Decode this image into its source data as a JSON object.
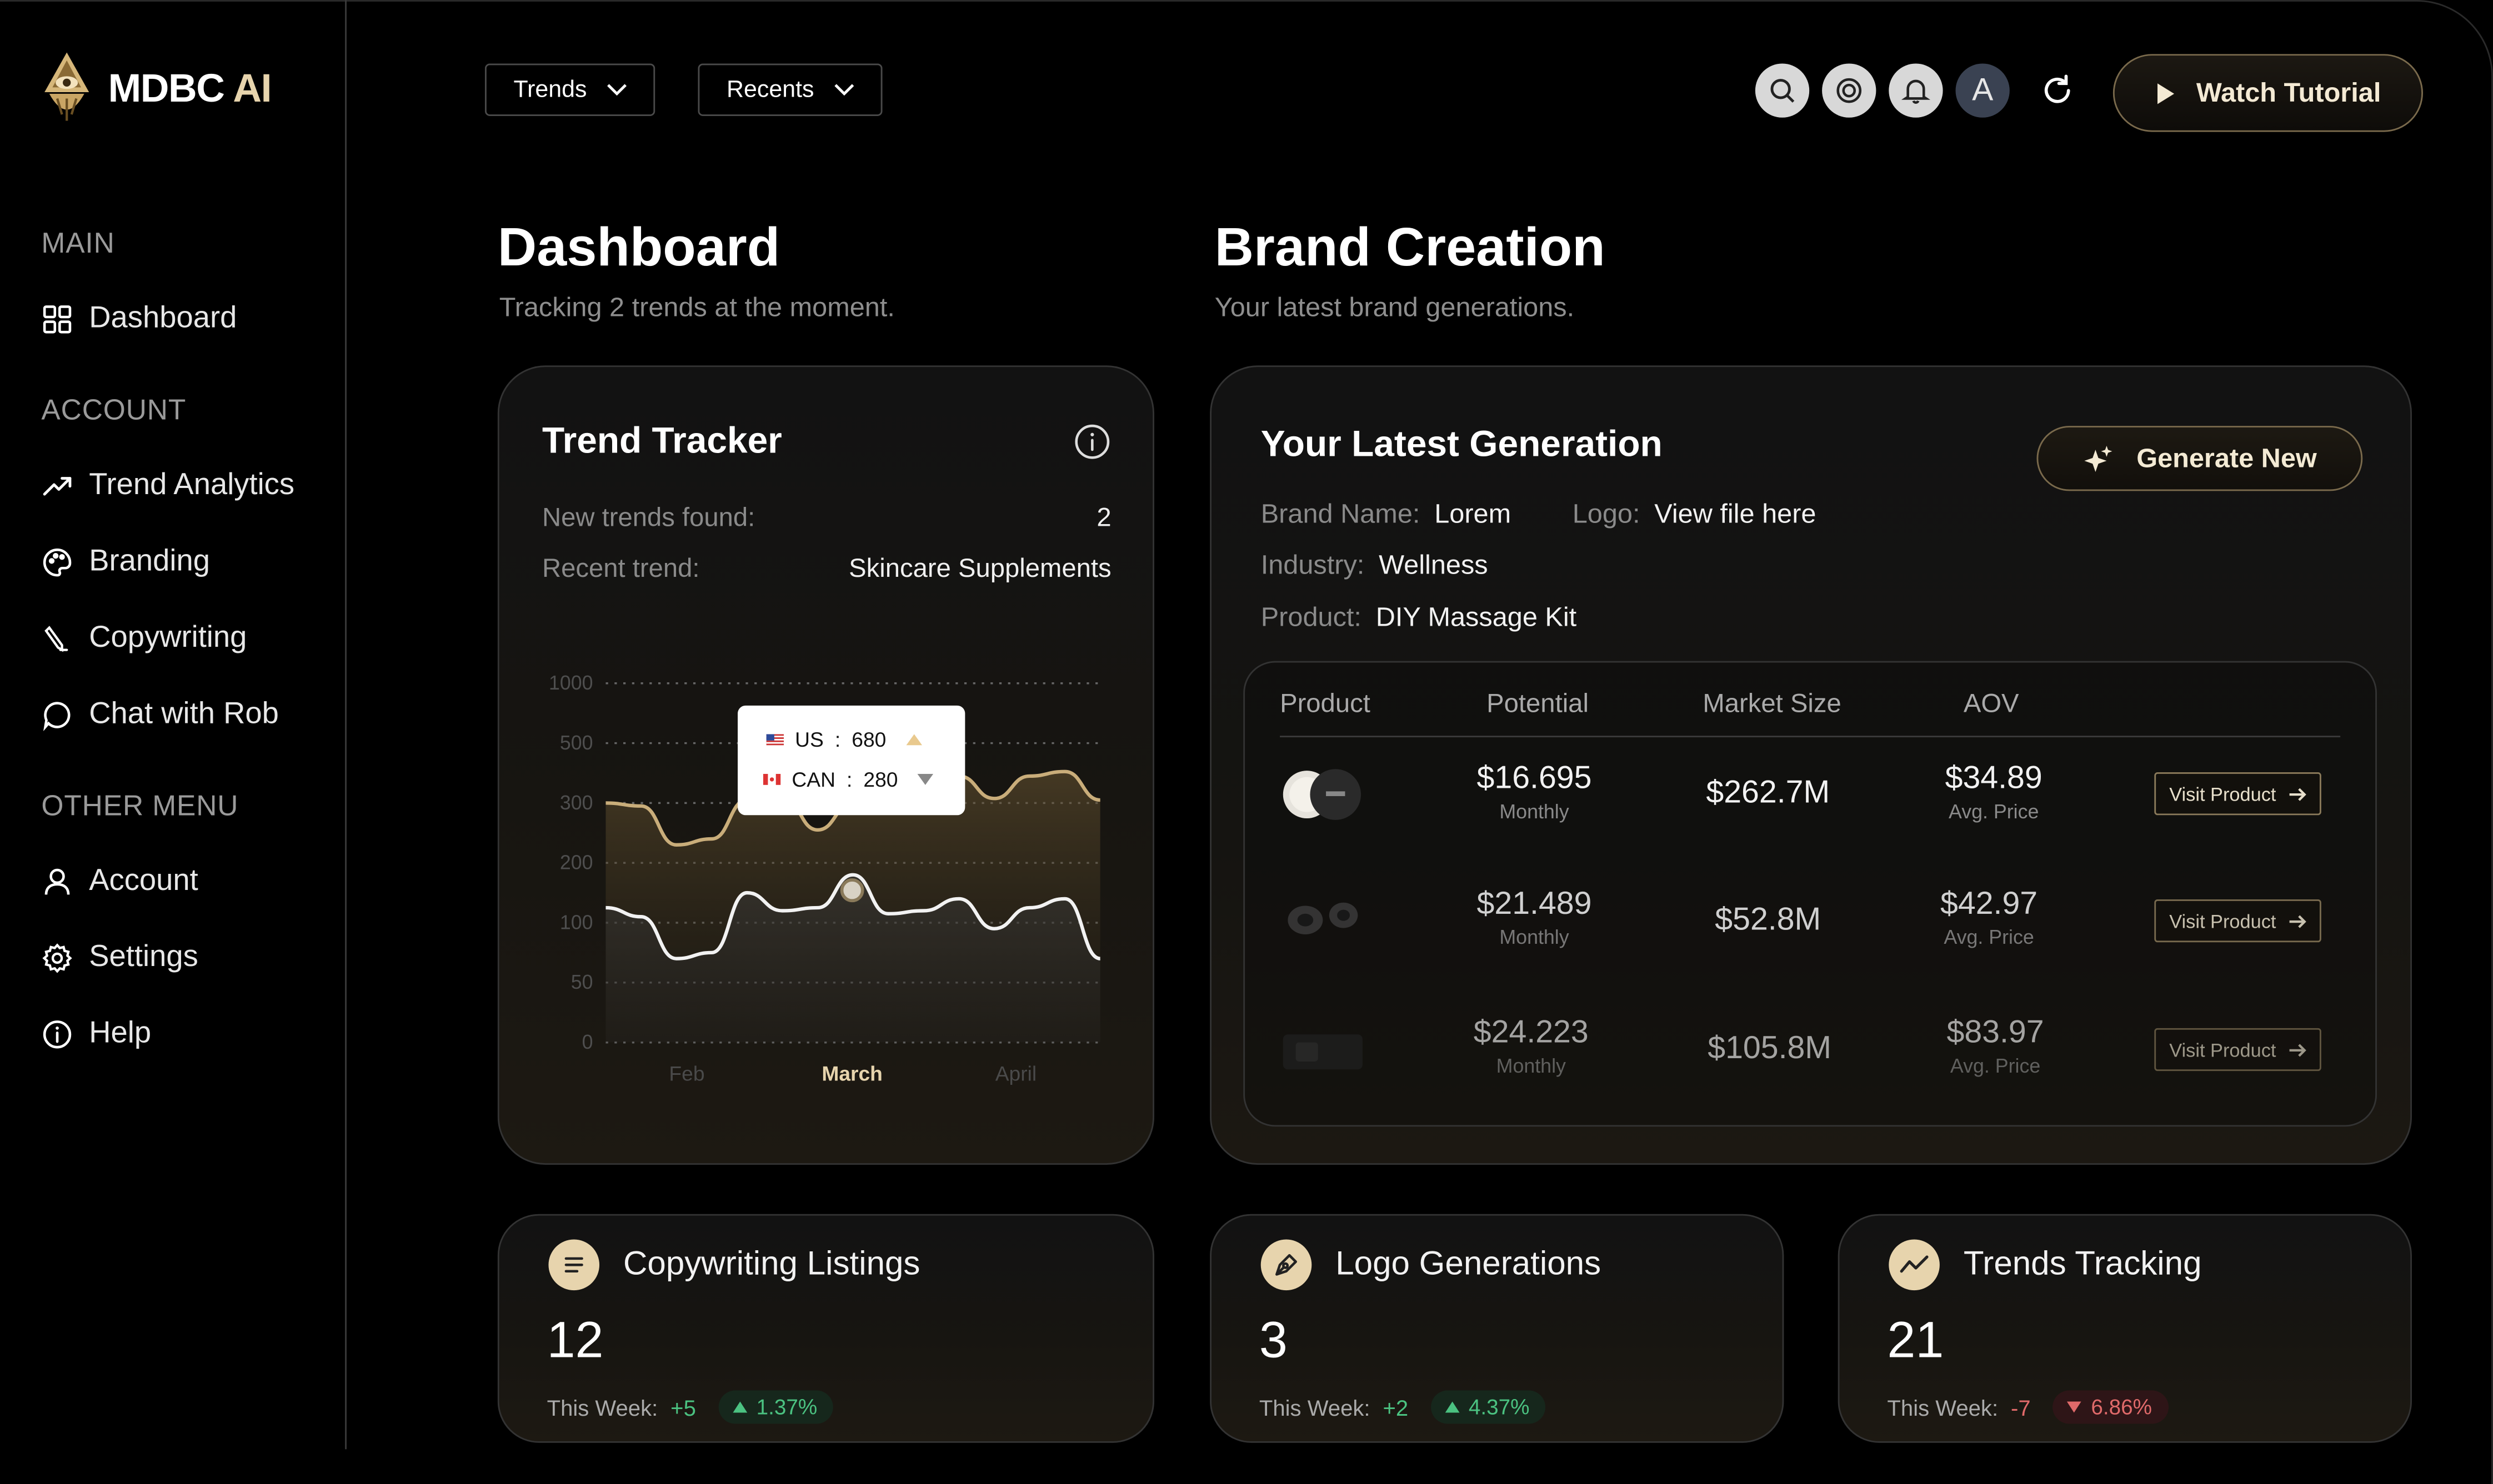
{
  "brand": {
    "name_prefix": "MDBC",
    "name_suffix": "AI"
  },
  "sidebar": {
    "sections": [
      "MAIN",
      "ACCOUNT",
      "OTHER MENU"
    ],
    "items": [
      {
        "label": "Dashboard",
        "icon": "grid-icon"
      },
      {
        "label": "Trend Analytics",
        "icon": "trend-up-icon"
      },
      {
        "label": "Branding",
        "icon": "palette-icon"
      },
      {
        "label": "Copywriting",
        "icon": "pen-icon"
      },
      {
        "label": "Chat with Rob",
        "icon": "chat-icon"
      },
      {
        "label": "Account",
        "icon": "user-icon"
      },
      {
        "label": "Settings",
        "icon": "gear-icon"
      },
      {
        "label": "Help",
        "icon": "info-icon"
      }
    ]
  },
  "topbar": {
    "dropdowns": [
      "Trends",
      "Recents"
    ],
    "icons": [
      "search-icon",
      "target-icon",
      "bell-icon"
    ],
    "avatar_initial": "A",
    "tutorial_label": "Watch Tutorial"
  },
  "dashboard": {
    "title": "Dashboard",
    "subtitle": "Tracking 2 trends at the moment."
  },
  "brand_creation": {
    "title": "Brand Creation",
    "subtitle": "Your latest brand generations."
  },
  "trend_tracker": {
    "title": "Trend Tracker",
    "rows": [
      {
        "label": "New trends found:",
        "value": "2"
      },
      {
        "label": "Recent trend:",
        "value": "Skincare Supplements"
      }
    ],
    "tooltip": [
      {
        "country": "US",
        "value": "680",
        "direction": "up"
      },
      {
        "country": "CAN",
        "value": "280",
        "direction": "down"
      }
    ]
  },
  "chart_data": {
    "type": "line",
    "y_tick_labels": [
      "1000",
      "500",
      "300",
      "200",
      "100",
      "50",
      "0"
    ],
    "x_tick_labels": [
      "Feb",
      "March",
      "April"
    ],
    "highlighted_x": "March",
    "series": [
      {
        "name": "US",
        "color": "#c9ad7a",
        "values": [
          300,
          295,
          230,
          240,
          310,
          320,
          255,
          300,
          310,
          370,
          390,
          315,
          390,
          405,
          310
        ]
      },
      {
        "name": "CAN",
        "color": "#f2f2f2",
        "values": [
          125,
          110,
          70,
          75,
          150,
          120,
          125,
          180,
          115,
          120,
          140,
          95,
          125,
          140,
          70
        ]
      }
    ],
    "grid": true
  },
  "latest_generation": {
    "title": "Your Latest Generation",
    "generate_label": "Generate New",
    "fields": {
      "brand_name": {
        "label": "Brand Name:",
        "value": "Lorem"
      },
      "logo": {
        "label": "Logo:",
        "value": "View file here"
      },
      "industry": {
        "label": "Industry:",
        "value": "Wellness"
      },
      "product": {
        "label": "Product:",
        "value": "DIY Massage Kit"
      }
    },
    "table": {
      "headers": [
        "Product",
        "Potential",
        "Market Size",
        "AOV"
      ],
      "rows": [
        {
          "potential": "$16.695",
          "potential_sub": "Monthly",
          "market": "$262.7M",
          "aov": "$34.89",
          "aov_sub": "Avg. Price",
          "action": "Visit Product"
        },
        {
          "potential": "$21.489",
          "potential_sub": "Monthly",
          "market": "$52.8M",
          "aov": "$42.97",
          "aov_sub": "Avg. Price",
          "action": "Visit Product"
        },
        {
          "potential": "$24.223",
          "potential_sub": "Monthly",
          "market": "$105.8M",
          "aov": "$83.97",
          "aov_sub": "Avg. Price",
          "action": "Visit Product"
        }
      ]
    }
  },
  "stats": [
    {
      "title": "Copywriting Listings",
      "value": "12",
      "week_label": "This Week:",
      "delta": "+5",
      "pct": "1.37%",
      "trend": "up",
      "icon": "list-icon"
    },
    {
      "title": "Logo Generations",
      "value": "3",
      "week_label": "This Week:",
      "delta": "+2",
      "pct": "4.37%",
      "trend": "up",
      "icon": "pen-nib-icon"
    },
    {
      "title": "Trends Tracking",
      "value": "21",
      "week_label": "This Week:",
      "delta": "-7",
      "pct": "6.86%",
      "trend": "down",
      "icon": "trend-line-icon"
    }
  ],
  "colors": {
    "accent": "#e7d4ad",
    "positive": "#4bc281",
    "negative": "#e06a6a"
  }
}
